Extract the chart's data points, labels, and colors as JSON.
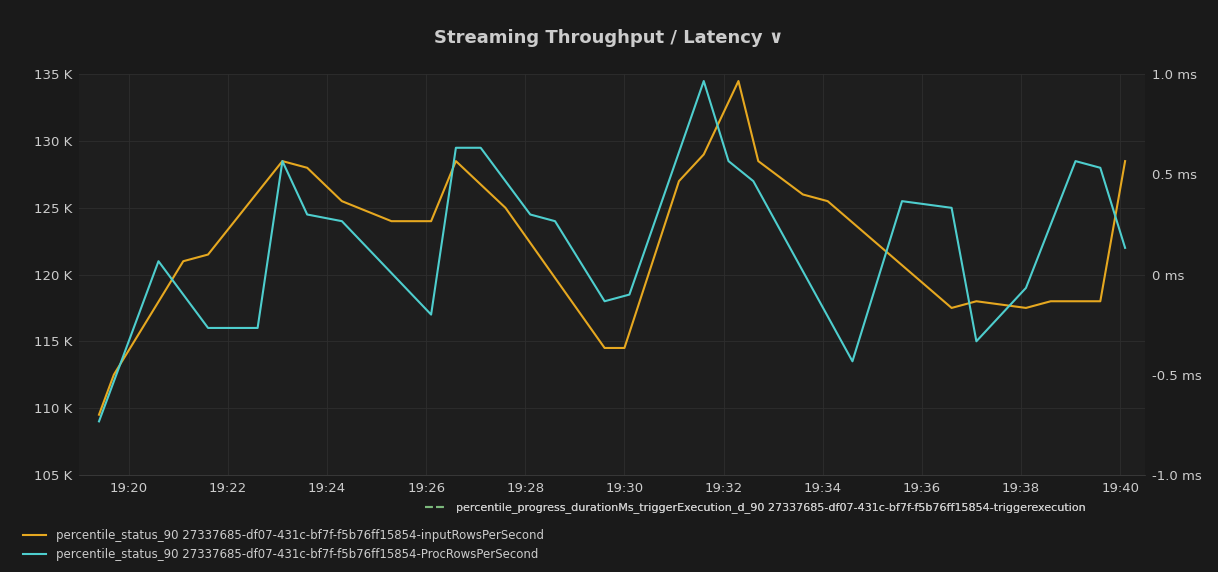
{
  "title": "Streaming Throughput / Latency ∨",
  "bg_color": "#1a1a1a",
  "plot_bg_color": "#1e1e1e",
  "grid_color": "#2e2e2e",
  "text_color": "#cccccc",
  "ylim_left": [
    105000,
    135000
  ],
  "ylim_right": [
    -1.0,
    1.0
  ],
  "yticks_left": [
    105000,
    110000,
    115000,
    120000,
    125000,
    130000,
    135000
  ],
  "ytick_labels_left": [
    "105 K",
    "110 K",
    "115 K",
    "120 K",
    "125 K",
    "130 K",
    "135 K"
  ],
  "yticks_right": [
    -1.0,
    -0.5,
    0.0,
    0.5,
    1.0
  ],
  "ytick_labels_right": [
    "-1.0 ms",
    "-0.5 ms",
    "0 ms",
    "0.5 ms",
    "1.0 ms"
  ],
  "xtick_labels": [
    "19:20",
    "19:22",
    "19:24",
    "19:26",
    "19:28",
    "19:30",
    "19:32",
    "19:34",
    "19:36",
    "19:38",
    "19:40"
  ],
  "xtick_positions": [
    20,
    22,
    24,
    26,
    28,
    30,
    32,
    34,
    36,
    38,
    40
  ],
  "xlim": [
    19.0,
    40.5
  ],
  "line_orange_color": "#e6a820",
  "line_cyan_color": "#4ecece",
  "line_green_color": "#7cb97c",
  "orange_label": "percentile_status_90 27337685-df07-431c-bf7f-f5b76ff15854-inputRowsPerSecond",
  "cyan_label": "percentile_status_90 27337685-df07-431c-bf7f-f5b76ff15854-ProcRowsPerSecond",
  "green_label": "percentile_progress_durationMs_triggerExecution_d_90 27337685-df07-431c-bf7f-f5b76ff15854-triggerexecution",
  "orange_x": [
    19.4,
    19.7,
    21.1,
    21.6,
    23.1,
    23.6,
    24.3,
    25.3,
    26.1,
    26.6,
    27.6,
    29.6,
    30.0,
    31.1,
    31.6,
    32.3,
    32.7,
    33.6,
    34.1,
    36.6,
    37.1,
    38.1,
    38.6,
    39.6,
    40.1
  ],
  "orange_y": [
    109500,
    112500,
    121000,
    121500,
    128500,
    128000,
    125500,
    124000,
    124000,
    128500,
    125000,
    114500,
    114500,
    127000,
    129000,
    134500,
    128500,
    126000,
    125500,
    117500,
    118000,
    117500,
    118000,
    118000,
    128500
  ],
  "cyan_x": [
    19.4,
    20.6,
    21.6,
    22.6,
    23.1,
    23.6,
    24.3,
    26.1,
    26.6,
    27.1,
    28.1,
    28.6,
    29.6,
    30.1,
    31.6,
    32.1,
    32.6,
    34.6,
    35.6,
    36.6,
    37.1,
    38.1,
    39.1,
    39.6,
    40.1
  ],
  "cyan_y": [
    109000,
    121000,
    116000,
    116000,
    128500,
    124500,
    124000,
    117000,
    129500,
    129500,
    124500,
    124000,
    118000,
    118500,
    134500,
    128500,
    127000,
    113500,
    125500,
    125000,
    115000,
    119000,
    128500,
    128000,
    122000
  ]
}
